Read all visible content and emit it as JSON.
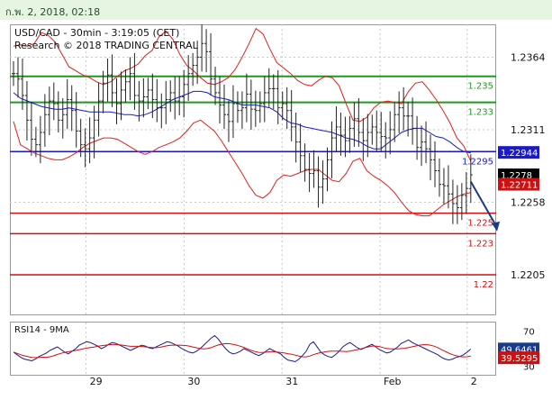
{
  "header": {
    "timestamp": "ก.พ. 2, 2018, 02:18"
  },
  "chart_data": {
    "type": "line",
    "title": "USD/CAD - 30min - 3:19:05 (CET)",
    "subtitle": "Research © 2018 TRADING CENTRAL",
    "ylim": [
      1.2176,
      1.2388
    ],
    "y_ticks": [
      {
        "label": "1.2364",
        "value": 1.2364
      },
      {
        "label": "1.2311",
        "value": 1.2311
      },
      {
        "label": "1.2258",
        "value": 1.2258
      },
      {
        "label": "1.2205",
        "value": 1.2205
      }
    ],
    "x_labels": [
      {
        "label": "29",
        "index": 20
      },
      {
        "label": "30",
        "index": 47
      },
      {
        "label": "31",
        "index": 74
      },
      {
        "label": "Feb",
        "index": 101
      },
      {
        "label": "2",
        "index": 125
      }
    ],
    "levels": [
      {
        "label": "1.235",
        "value": 1.235,
        "color": "#1f9a1f",
        "width": 2
      },
      {
        "label": "1.233",
        "value": 1.2331,
        "color": "#1f9a1f",
        "width": 2
      },
      {
        "label": "1.2295",
        "value": 1.2295,
        "color": "#1a1acc",
        "width": 1.5
      },
      {
        "label": "1.225",
        "value": 1.225,
        "color": "#d01010",
        "width": 1.5
      },
      {
        "label": "1.223",
        "value": 1.2235,
        "color": "#d01010",
        "width": 1.5
      },
      {
        "label": "1.22",
        "value": 1.2205,
        "color": "#d01010",
        "width": 1.5
      }
    ],
    "price_badges": [
      {
        "label": "1.22944",
        "value": 1.22944,
        "color": "#1a1acc"
      },
      {
        "label": "1.2278",
        "value": 1.2278,
        "color": "#000000"
      },
      {
        "label": "1.22711",
        "value": 1.22711,
        "color": "#d01010"
      }
    ],
    "series": [
      {
        "role": "price",
        "color": "#222222",
        "values": [
          1.2352,
          1.2348,
          1.2336,
          1.2318,
          1.2304,
          1.23,
          1.2309,
          1.2322,
          1.2332,
          1.233,
          1.2318,
          1.2322,
          1.2333,
          1.2325,
          1.231,
          1.23,
          1.2297,
          1.2305,
          1.2318,
          1.2332,
          1.2345,
          1.2351,
          1.2338,
          1.233,
          1.234,
          1.2346,
          1.2352,
          1.2336,
          1.2332,
          1.2335,
          1.234,
          1.2333,
          1.2327,
          1.2327,
          1.2333,
          1.2338,
          1.2332,
          1.2335,
          1.2344,
          1.2352,
          1.2358,
          1.2364,
          1.2374,
          1.2368,
          1.2348,
          1.2338,
          1.2329,
          1.2322,
          1.2317,
          1.233,
          1.2325,
          1.2327,
          1.2337,
          1.2326,
          1.2325,
          1.233,
          1.2338,
          1.2341,
          1.2341,
          1.2327,
          1.233,
          1.2325,
          1.2313,
          1.2302,
          1.2292,
          1.2282,
          1.2279,
          1.2281,
          1.2269,
          1.2275,
          1.2289,
          1.2305,
          1.2313,
          1.2307,
          1.2303,
          1.2312,
          1.2319,
          1.2309,
          1.2303,
          1.2309,
          1.2313,
          1.2309,
          1.2306,
          1.2305,
          1.2311,
          1.2322,
          1.2327,
          1.2321,
          1.2321,
          1.2312,
          1.2298,
          1.2302,
          1.2297,
          1.2289,
          1.2281,
          1.2271,
          1.227,
          1.2264,
          1.2257,
          1.2254,
          1.2263,
          1.2268,
          1.2278
        ]
      },
      {
        "role": "ma-upper",
        "color": "#e02020",
        "values": [
          1.2372,
          1.2373,
          1.2372,
          1.2374,
          1.2382,
          1.238,
          1.2375,
          1.2366,
          1.2357,
          1.2354,
          1.2351,
          1.2349,
          1.2346,
          1.2344,
          1.2346,
          1.235,
          1.2354,
          1.2356,
          1.2359,
          1.2365,
          1.2369,
          1.2379,
          1.2383,
          1.2377,
          1.2366,
          1.2358,
          1.2354,
          1.2349,
          1.2345,
          1.2344,
          1.2346,
          1.2349,
          1.2355,
          1.2364,
          1.2374,
          1.2385,
          1.2381,
          1.237,
          1.236,
          1.2356,
          1.2352,
          1.2347,
          1.2344,
          1.2343,
          1.2347,
          1.235,
          1.2349,
          1.2343,
          1.233,
          1.2318,
          1.2317,
          1.232,
          1.2327,
          1.2331,
          1.2332,
          1.2331,
          1.233,
          1.2339,
          1.2345,
          1.2346,
          1.234,
          1.2333,
          1.2325,
          1.2316,
          1.2305,
          1.2299,
          1.2288
        ]
      },
      {
        "role": "ma-mid",
        "color": "#1a1acc",
        "values": [
          1.2338,
          1.2334,
          1.2332,
          1.233,
          1.2328,
          1.2327,
          1.2326,
          1.2326,
          1.2327,
          1.2326,
          1.2325,
          1.2324,
          1.2324,
          1.2324,
          1.2324,
          1.2323,
          1.2322,
          1.2322,
          1.2321,
          1.2322,
          1.2324,
          1.2327,
          1.233,
          1.2333,
          1.2335,
          1.2337,
          1.2339,
          1.2339,
          1.2338,
          1.2335,
          1.2334,
          1.2333,
          1.2331,
          1.2329,
          1.2329,
          1.2329,
          1.2328,
          1.2327,
          1.2324,
          1.2319,
          1.2316,
          1.2315,
          1.2313,
          1.2312,
          1.2311,
          1.231,
          1.2309,
          1.2307,
          1.2305,
          1.2304,
          1.2302,
          1.2299,
          1.2297,
          1.2297,
          1.2301,
          1.2305,
          1.2309,
          1.2311,
          1.2312,
          1.2312,
          1.2309,
          1.2306,
          1.2305,
          1.2302,
          1.2298,
          1.2295,
          1.2294
        ]
      },
      {
        "role": "ma-lower",
        "color": "#e02020",
        "values": [
          1.2317,
          1.23,
          1.2297,
          1.2294,
          1.2292,
          1.229,
          1.2289,
          1.2289,
          1.2291,
          1.2294,
          1.2298,
          1.2301,
          1.2303,
          1.2305,
          1.2305,
          1.2304,
          1.2301,
          1.2298,
          1.2295,
          1.2293,
          1.2295,
          1.2298,
          1.23,
          1.2302,
          1.2305,
          1.231,
          1.2316,
          1.2318,
          1.2314,
          1.231,
          1.2303,
          1.2295,
          1.2287,
          1.2279,
          1.227,
          1.2263,
          1.2261,
          1.2265,
          1.2274,
          1.2278,
          1.2277,
          1.2279,
          1.2281,
          1.2282,
          1.2282,
          1.2278,
          1.2274,
          1.2273,
          1.2279,
          1.2288,
          1.229,
          1.2281,
          1.2277,
          1.2274,
          1.227,
          1.2265,
          1.2258,
          1.2252,
          1.2249,
          1.2248,
          1.2248,
          1.2252,
          1.2256,
          1.2259,
          1.2262,
          1.2264,
          1.2265
        ]
      }
    ],
    "projection": {
      "from_index": 126,
      "from_value": 1.2273,
      "to_index": 133,
      "to_value": 1.2238,
      "color": "#1a3a8a"
    },
    "rsi": {
      "label": "RSI14 - 9MA",
      "ylim": [
        20,
        80
      ],
      "y_ticks": [
        {
          "label": "70",
          "value": 70
        },
        {
          "label": "50",
          "value": 50
        },
        {
          "label": "30",
          "value": 30
        }
      ],
      "badges": [
        {
          "label": "49.6461",
          "value": 49.6461,
          "color": "#1a3a8a"
        },
        {
          "label": "39.5295",
          "value": 39.5295,
          "color": "#d01010"
        }
      ],
      "rsi_values": [
        46,
        43,
        40,
        38,
        37,
        36,
        38,
        41,
        43,
        45,
        48,
        50,
        52,
        49,
        46,
        44,
        47,
        50,
        54,
        56,
        58,
        57,
        55,
        53,
        50,
        52,
        55,
        57,
        56,
        54,
        52,
        50,
        48,
        50,
        52,
        54,
        53,
        51,
        50,
        52,
        54,
        56,
        58,
        57,
        55,
        53,
        50,
        48,
        46,
        45,
        47,
        50,
        54,
        58,
        62,
        65,
        61,
        55,
        50,
        46,
        44,
        45,
        47,
        50,
        48,
        46,
        44,
        42,
        44,
        47,
        50,
        48,
        46,
        44,
        40,
        37,
        36,
        35,
        38,
        42,
        47,
        55,
        58,
        52,
        46,
        43,
        41,
        40,
        43,
        47,
        52,
        55,
        57,
        54,
        51,
        49,
        51,
        53,
        55,
        52,
        49,
        47,
        45,
        46,
        49,
        52,
        56,
        58,
        60,
        57,
        55,
        53,
        51,
        49,
        47,
        45,
        43,
        40,
        38,
        37,
        38,
        40,
        41,
        43,
        46,
        49.6
      ]
    }
  }
}
